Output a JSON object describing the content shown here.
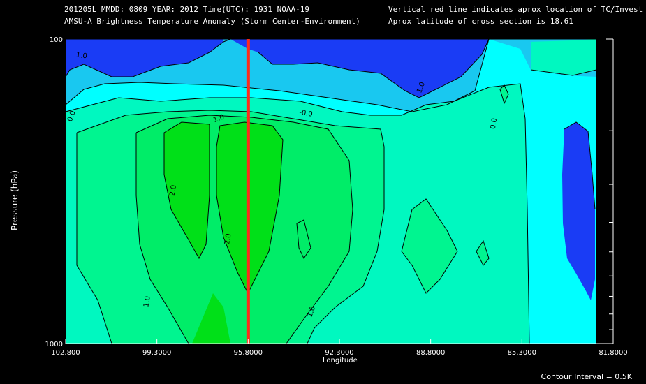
{
  "header": {
    "line1": "201205L  MMDD: 0809 YEAR: 2012 Time(UTC): 1931 NOAA-19",
    "line2": "AMSU-A Brightness Temperature Anomaly (Storm Center-Environment)",
    "line3": "Vertical red line indicates aprox location of TC/Invest",
    "line4": "Aprox latitude of cross section is 18.61"
  },
  "footer": {
    "contour_interval": "Contour Interval = 0.5K"
  },
  "colors": {
    "background": "#000000",
    "storm_line": "#ff2a1a",
    "contour": "#000000",
    "fill_levels": [
      "#1a3cf5",
      "#19c8f0",
      "#00ffff",
      "#00f8c0",
      "#00f590",
      "#00ed68",
      "#00e018"
    ]
  },
  "chart_data": {
    "type": "contour",
    "xlabel": "Longitude",
    "ylabel": "Pressure (hPa)",
    "x_ticks": [
      "102.800",
      "99.3000",
      "95.8000",
      "92.3000",
      "88.8000",
      "85.3000",
      "81.8000"
    ],
    "y_ticks": [
      "100",
      "1000"
    ],
    "xlim": [
      102.8,
      81.8
    ],
    "ylim": [
      1000,
      100
    ],
    "y_scale": "log",
    "contour_interval": 0.5,
    "storm_center_longitude": 95.8,
    "contour_labels": [
      {
        "text": "1.0",
        "lon": 102.2,
        "p": 115,
        "rot": 8
      },
      {
        "text": "0.0",
        "lon": 102.5,
        "p": 180,
        "rot": -70
      },
      {
        "text": "1.0",
        "lon": 96.9,
        "p": 185,
        "rot": -20
      },
      {
        "text": "-0.0",
        "lon": 93.6,
        "p": 178,
        "rot": 10
      },
      {
        "text": "1.0",
        "lon": 89.1,
        "p": 145,
        "rot": -70
      },
      {
        "text": "0.0",
        "lon": 86.3,
        "p": 190,
        "rot": -80
      },
      {
        "text": "2.0",
        "lon": 98.6,
        "p": 315,
        "rot": -80
      },
      {
        "text": "2.0",
        "lon": 96.5,
        "p": 455,
        "rot": -80
      },
      {
        "text": "1.0",
        "lon": 99.6,
        "p": 730,
        "rot": -80
      },
      {
        "text": "1.0",
        "lon": 93.3,
        "p": 790,
        "rot": -70
      }
    ]
  }
}
